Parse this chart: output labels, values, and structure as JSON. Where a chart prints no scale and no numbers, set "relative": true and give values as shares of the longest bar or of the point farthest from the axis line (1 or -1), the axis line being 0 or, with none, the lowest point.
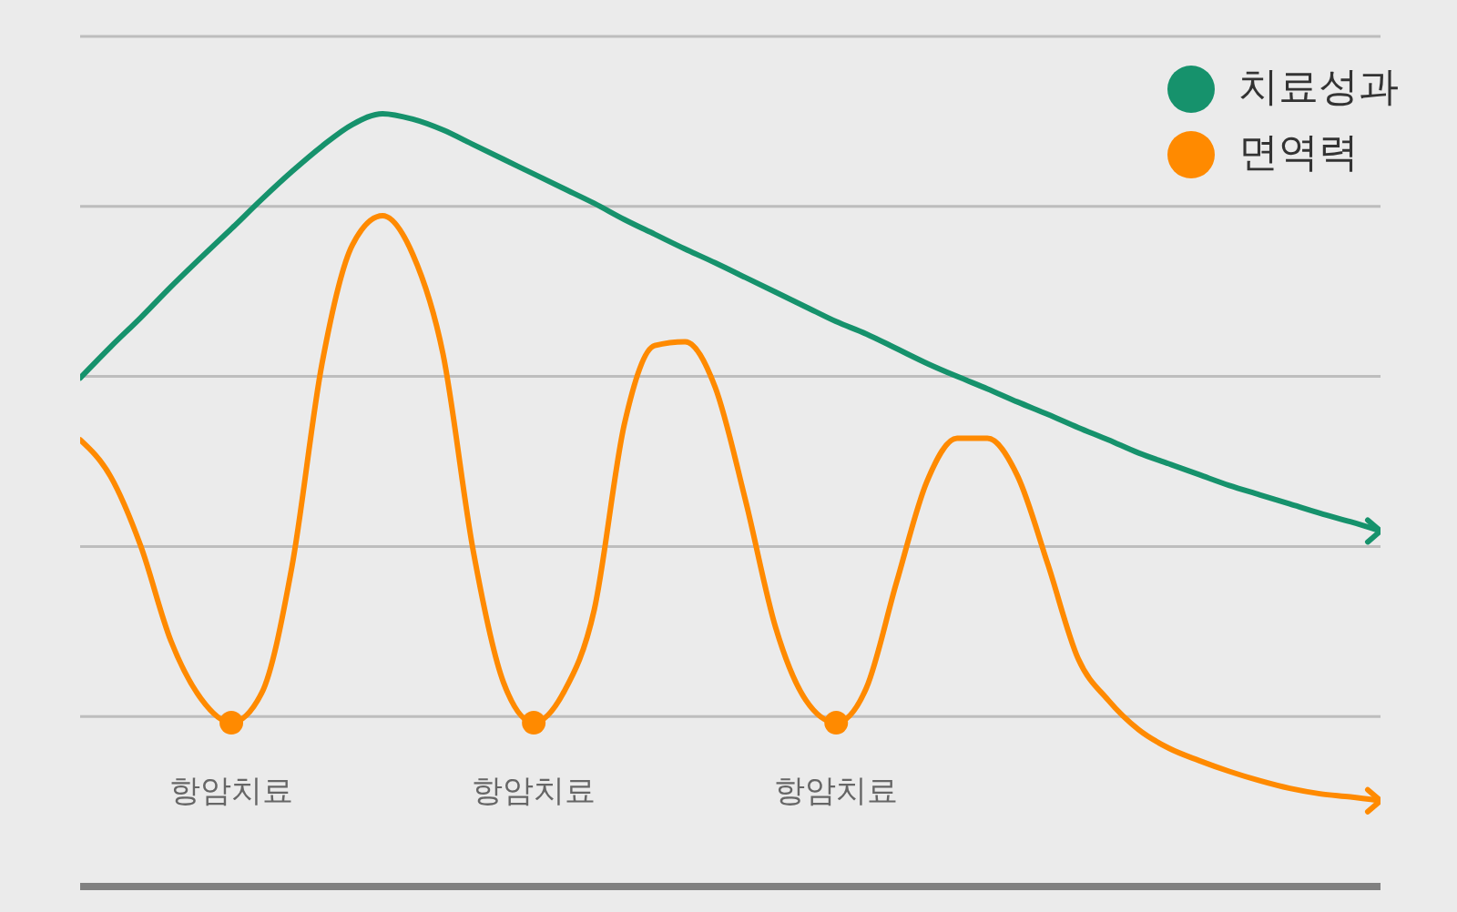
{
  "chart_data": {
    "type": "line",
    "relative": true,
    "grid": "y",
    "legend": "top right",
    "categories": [
      null,
      null,
      null,
      null,
      null,
      "항암치료",
      null,
      null,
      null,
      null,
      null,
      null,
      null,
      null,
      null,
      "항암치료",
      null,
      null,
      null,
      null,
      null,
      null,
      null,
      null,
      null,
      "항암치료",
      null,
      null,
      null,
      null,
      null,
      null,
      null,
      null,
      null,
      null,
      null,
      null,
      null,
      null,
      null,
      null,
      null,
      null
    ],
    "series": [
      {
        "name": "치료성과",
        "color": "#16926c",
        "values": [
          0.658,
          0.698,
          0.736,
          0.776,
          0.814,
          0.851,
          0.889,
          0.925,
          0.958,
          0.986,
          1.0,
          0.993,
          0.979,
          0.96,
          0.941,
          0.922,
          0.903,
          0.884,
          0.863,
          0.844,
          0.825,
          0.807,
          0.788,
          0.769,
          0.75,
          0.731,
          0.715,
          0.696,
          0.677,
          0.66,
          0.644,
          0.627,
          0.611,
          0.594,
          0.578,
          0.561,
          0.547,
          0.533,
          0.519,
          0.507,
          0.495,
          0.483,
          0.472,
          0.46
        ]
      },
      {
        "name": "면역력",
        "color": "#ff8a00",
        "values": [
          0.578,
          0.531,
          0.441,
          0.318,
          0.243,
          0.212,
          0.25,
          0.413,
          0.677,
          0.83,
          0.868,
          0.818,
          0.689,
          0.434,
          0.264,
          0.212,
          0.252,
          0.358,
          0.599,
          0.7,
          0.705,
          0.646,
          0.5,
          0.335,
          0.241,
          0.212,
          0.257,
          0.394,
          0.524,
          0.58,
          0.58,
          0.531,
          0.417,
          0.295,
          0.241,
          0.203,
          0.179,
          0.163,
          0.149,
          0.137,
          0.127,
          0.12,
          0.116,
          0.111
        ]
      },
      {
        "type": "scatter",
        "color": "#ff8a00",
        "values": [
          null,
          null,
          null,
          null,
          null,
          0.212,
          null,
          null,
          null,
          null,
          null,
          null,
          null,
          null,
          null,
          0.212,
          null,
          null,
          null,
          null,
          null,
          null,
          null,
          null,
          null,
          0.212,
          null,
          null,
          null,
          null,
          null,
          null,
          null,
          null,
          null,
          null,
          null,
          null,
          null,
          null,
          null,
          null,
          null,
          null
        ]
      }
    ]
  }
}
